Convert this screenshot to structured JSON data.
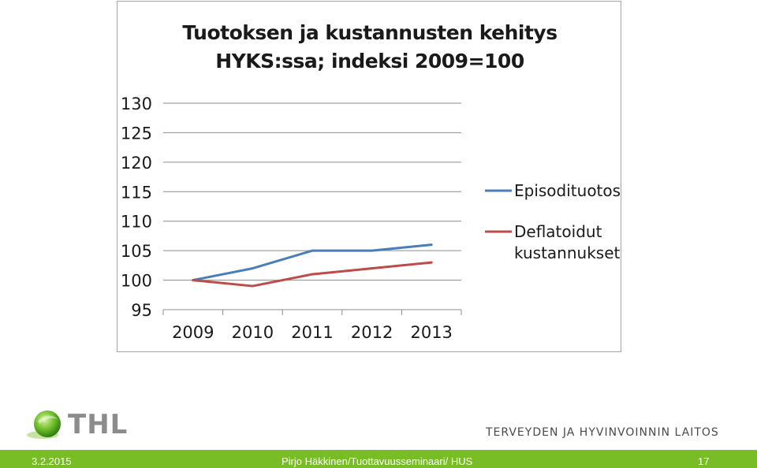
{
  "chart_data": {
    "type": "line",
    "title_lines": [
      "Tuotoksen ja kustannusten kehitys",
      "HYKS:ssa; indeksi 2009=100"
    ],
    "x": [
      "2009",
      "2010",
      "2011",
      "2012",
      "2013"
    ],
    "ylim": [
      95,
      130
    ],
    "yticks": [
      95,
      100,
      105,
      110,
      115,
      120,
      125,
      130
    ],
    "grid": true,
    "legend_position": "right",
    "series": [
      {
        "name": "Episodituotos",
        "color": "#4a7ebb",
        "values": [
          100,
          102,
          105,
          105,
          106
        ]
      },
      {
        "name": "Deflatoidut kustannukset",
        "name_lines": [
          "Deflatoidut",
          "kustannukset"
        ],
        "color": "#be4b48",
        "values": [
          100,
          99,
          101,
          102,
          103
        ]
      }
    ]
  },
  "branding": {
    "logo_text": "THL",
    "institute": "TERVEYDEN JA HYVINVOINNIN LAITOS",
    "accent_color": "#78bc26"
  },
  "footer": {
    "date": "3.2.2015",
    "author": "Pirjo Häkkinen/Tuottavuusseminaari/ HUS",
    "page": "17"
  }
}
